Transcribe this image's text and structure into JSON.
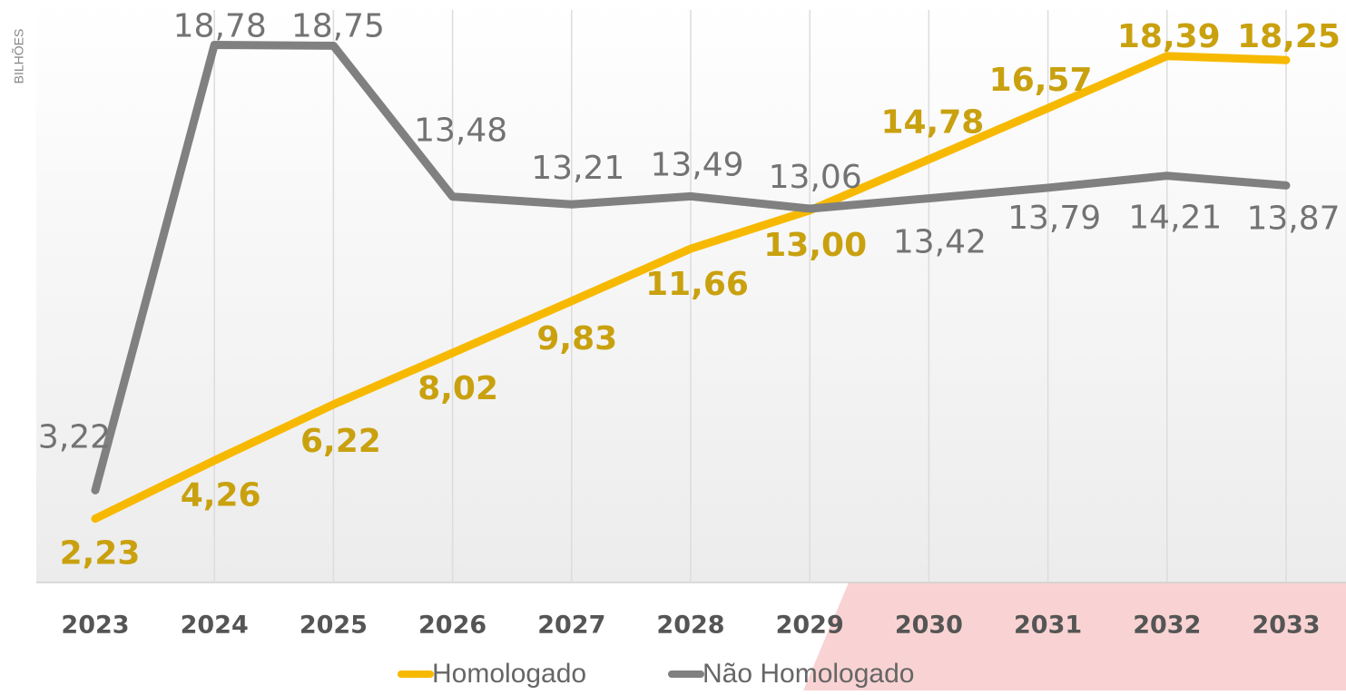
{
  "chart_data": {
    "type": "line",
    "y_axis_label": "BILHÕES",
    "categories": [
      "2023",
      "2024",
      "2025",
      "2026",
      "2027",
      "2028",
      "2029",
      "2030",
      "2031",
      "2032",
      "2033"
    ],
    "ylim": [
      0,
      20
    ],
    "grid": "vertical",
    "legend": "bottom",
    "series": [
      {
        "name": "Homologado",
        "color": "#f7b900",
        "label_color": "#c9a10f",
        "values": [
          2.23,
          4.26,
          6.22,
          8.02,
          9.83,
          11.66,
          13.0,
          14.78,
          16.57,
          18.39,
          18.25
        ],
        "value_labels": [
          "2,23",
          "4,26",
          "6,22",
          "8,02",
          "9,83",
          "11,66",
          "13,00",
          "14,78",
          "16,57",
          "18,39",
          "18,25"
        ]
      },
      {
        "name": "Não Homologado",
        "color": "#808080",
        "label_color": "#737373",
        "values": [
          3.22,
          18.78,
          18.75,
          13.48,
          13.21,
          13.49,
          13.06,
          13.42,
          13.79,
          14.21,
          13.87
        ],
        "value_labels": [
          "3,22",
          "18,78",
          "18,75",
          "13,48",
          "13,21",
          "13,49",
          "13,06",
          "13,42",
          "13,79",
          "14,21",
          "13,87"
        ]
      }
    ]
  }
}
